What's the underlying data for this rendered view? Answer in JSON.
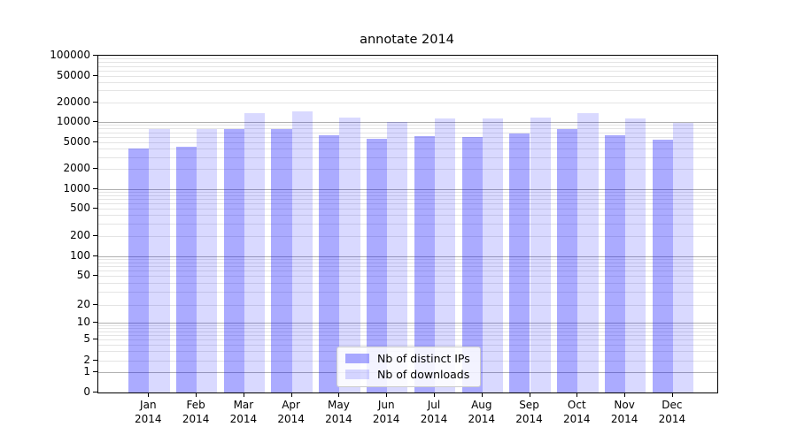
{
  "chart_data": {
    "type": "bar",
    "title": "annotate 2014",
    "year_label": "2014",
    "categories": [
      "Jan",
      "Feb",
      "Mar",
      "Apr",
      "May",
      "Jun",
      "Jul",
      "Aug",
      "Sep",
      "Oct",
      "Nov",
      "Dec"
    ],
    "series": [
      {
        "name": "Nb of distinct IPs",
        "color": "#0000ff",
        "alpha": 0.33,
        "apparent_color": "#abABff",
        "values": [
          3950,
          4300,
          7900,
          7800,
          6400,
          5600,
          6050,
          5850,
          6700,
          7800,
          6400,
          5450
        ]
      },
      {
        "name": "Nb of downloads",
        "color": "#0000ff",
        "alpha": 0.15,
        "apparent_color": "#d9d9ff",
        "values": [
          7900,
          7800,
          13600,
          14300,
          11700,
          9900,
          11500,
          11200,
          11700,
          13500,
          11400,
          9600
        ]
      }
    ],
    "xlabel": "",
    "ylabel": "",
    "yscale": "symlog",
    "ylim": [
      0,
      100000
    ],
    "yticks": [
      100000,
      50000,
      20000,
      10000,
      5000,
      2000,
      1000,
      500,
      200,
      100,
      50,
      20,
      10,
      5,
      2,
      1,
      0
    ],
    "grid": true,
    "gridline_major_color": "#b0b0b0",
    "gridline_minor_color": "#e4e4e4",
    "legend_position": "lower center",
    "legend_border_color": "#cccccc"
  }
}
